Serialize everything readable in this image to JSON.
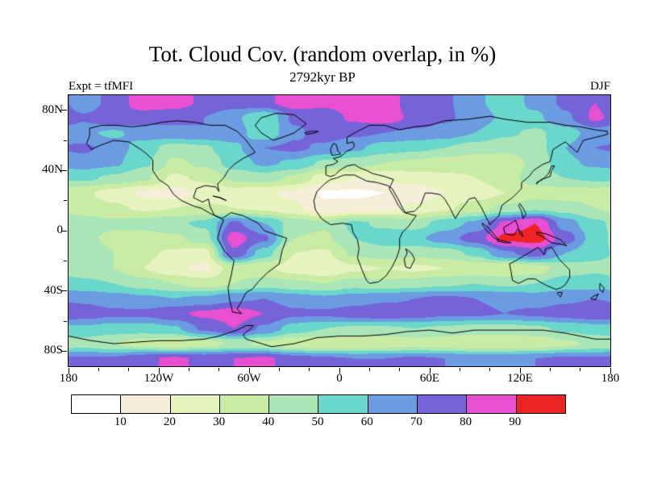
{
  "figure": {
    "title": "Tot. Cloud Cov. (random overlap, in %)",
    "subtitle": "2792kyr BP",
    "experiment_label": "Expt = tfMFI",
    "season_label": "DJF"
  },
  "chart_data": {
    "type": "heatmap",
    "title": "Tot. Cloud Cov. (random overlap, in %)",
    "subtitle": "2792kyr BP",
    "experiment": "Expt = tfMFI",
    "season": "DJF",
    "units": "%",
    "projection": "equirectangular",
    "lon_range": [
      -180,
      180
    ],
    "lat_range": [
      -90,
      90
    ],
    "levels": [
      10,
      20,
      30,
      40,
      50,
      60,
      70,
      80,
      90
    ],
    "palette": [
      "#FFFFFF",
      "#F6EED8",
      "#E6F3BF",
      "#C9ECA5",
      "#AAE5B8",
      "#69D7CB",
      "#6B9BE0",
      "#7464D8",
      "#E64FD0",
      "#EE2424"
    ],
    "xticks": [
      {
        "label": "180",
        "lon": -180
      },
      {
        "label": "120W",
        "lon": -120
      },
      {
        "label": "60W",
        "lon": -60
      },
      {
        "label": "0",
        "lon": 0
      },
      {
        "label": "60E",
        "lon": 60
      },
      {
        "label": "120E",
        "lon": 120
      },
      {
        "label": "180",
        "lon": 180
      }
    ],
    "yticks": [
      {
        "label": "80N",
        "lat": 80
      },
      {
        "label": "40N",
        "lat": 40
      },
      {
        "label": "0",
        "lat": 0
      },
      {
        "label": "40S",
        "lat": -40
      },
      {
        "label": "80S",
        "lat": -80
      }
    ],
    "grid": {
      "lon": [
        -170,
        -150,
        -130,
        -110,
        -90,
        -70,
        -50,
        -30,
        -10,
        10,
        30,
        50,
        70,
        90,
        110,
        130,
        150,
        170
      ],
      "lat": [
        85,
        75,
        65,
        55,
        45,
        35,
        25,
        15,
        5,
        -5,
        -15,
        -25,
        -35,
        -45,
        -55,
        -65,
        -75,
        -85
      ],
      "values": [
        [
          62,
          75,
          85,
          85,
          78,
          75,
          78,
          85,
          82,
          85,
          85,
          75,
          72,
          62,
          55,
          62,
          72,
          80
        ],
        [
          72,
          80,
          75,
          72,
          70,
          62,
          50,
          72,
          75,
          82,
          85,
          78,
          72,
          65,
          58,
          58,
          68,
          82
        ],
        [
          62,
          58,
          65,
          68,
          70,
          65,
          52,
          68,
          75,
          72,
          70,
          68,
          65,
          60,
          52,
          48,
          55,
          65
        ],
        [
          72,
          65,
          55,
          45,
          48,
          58,
          70,
          72,
          68,
          62,
          55,
          52,
          50,
          45,
          42,
          45,
          60,
          70
        ],
        [
          65,
          62,
          52,
          38,
          42,
          55,
          62,
          58,
          48,
          45,
          40,
          38,
          35,
          32,
          35,
          42,
          58,
          62
        ],
        [
          52,
          48,
          42,
          28,
          32,
          42,
          45,
          38,
          25,
          20,
          22,
          25,
          28,
          30,
          35,
          45,
          50,
          52
        ],
        [
          32,
          25,
          18,
          15,
          22,
          25,
          22,
          18,
          9,
          8,
          10,
          14,
          20,
          25,
          30,
          35,
          35,
          35
        ],
        [
          35,
          32,
          28,
          30,
          32,
          30,
          28,
          22,
          12,
          15,
          18,
          22,
          28,
          35,
          42,
          48,
          45,
          40
        ],
        [
          45,
          42,
          45,
          48,
          52,
          72,
          60,
          45,
          42,
          52,
          48,
          45,
          55,
          62,
          82,
          90,
          65,
          52
        ],
        [
          42,
          38,
          35,
          38,
          45,
          85,
          72,
          40,
          38,
          50,
          55,
          58,
          65,
          75,
          92,
          95,
          75,
          55
        ],
        [
          48,
          40,
          32,
          28,
          25,
          78,
          55,
          30,
          28,
          42,
          45,
          42,
          45,
          52,
          68,
          75,
          60,
          52
        ],
        [
          45,
          40,
          30,
          22,
          18,
          35,
          32,
          25,
          20,
          28,
          30,
          28,
          30,
          32,
          30,
          35,
          45,
          48
        ],
        [
          52,
          50,
          45,
          40,
          35,
          40,
          45,
          42,
          40,
          45,
          42,
          45,
          48,
          50,
          48,
          50,
          55,
          55
        ],
        [
          68,
          65,
          62,
          60,
          62,
          68,
          70,
          65,
          62,
          65,
          68,
          70,
          72,
          70,
          68,
          65,
          68,
          70
        ],
        [
          75,
          72,
          72,
          78,
          82,
          85,
          80,
          72,
          72,
          75,
          78,
          75,
          72,
          72,
          70,
          72,
          75,
          78
        ],
        [
          58,
          55,
          55,
          58,
          72,
          80,
          68,
          55,
          50,
          48,
          48,
          50,
          48,
          45,
          45,
          48,
          52,
          55
        ],
        [
          45,
          40,
          35,
          32,
          35,
          42,
          38,
          32,
          30,
          30,
          32,
          35,
          33,
          30,
          30,
          32,
          38,
          42
        ],
        [
          72,
          72,
          78,
          82,
          78,
          80,
          82,
          75,
          72,
          70,
          70,
          72,
          70,
          68,
          68,
          70,
          72,
          72
        ]
      ]
    }
  }
}
